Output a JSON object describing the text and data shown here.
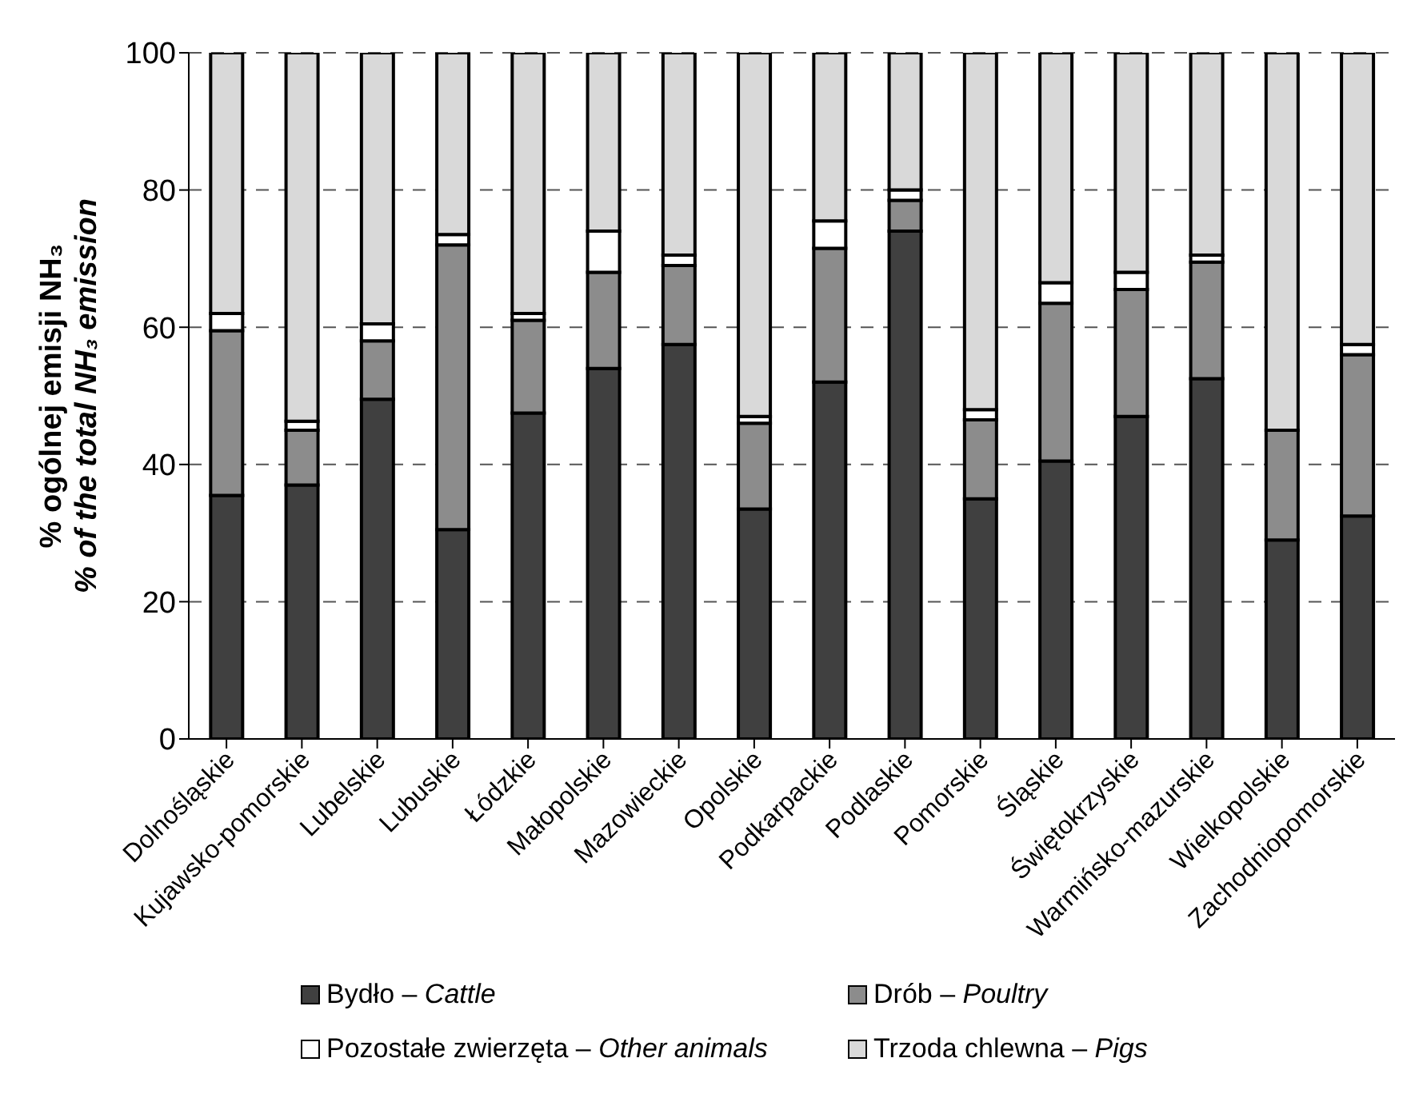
{
  "chart_data": {
    "type": "bar",
    "stacked": true,
    "ylabel": "% ogólnej emisji NH₃\n% of the total NH₃ emission",
    "categories": [
      "Dolnośląskie",
      "Kujawsko-pomorskie",
      "Lubelskie",
      "Lubuskie",
      "Łódzkie",
      "Małopolskie",
      "Mazowieckie",
      "Opolskie",
      "Podkarpackie",
      "Podlaskie",
      "Pomorskie",
      "Śląskie",
      "Świętokrzyskie",
      "Warmińsko-mazurskie",
      "Wielkopolskie",
      "Zachodniopomorskie"
    ],
    "series": [
      {
        "name": "Bydło – Cattle",
        "color": "#404040",
        "values": [
          35.5,
          37,
          49.5,
          30.5,
          47.5,
          54,
          57.5,
          33.5,
          52,
          74,
          35,
          40.5,
          47,
          52.5,
          29,
          32.5
        ]
      },
      {
        "name": "Drób – Poultry",
        "color": "#8c8c8c",
        "values": [
          24,
          8,
          8.5,
          41.5,
          13.5,
          14,
          11.5,
          12.5,
          19.5,
          4.5,
          11.5,
          23,
          18.5,
          17,
          16,
          23.5
        ]
      },
      {
        "name": "Pozostałe zwierzęta – Other animals",
        "color": "#ffffff",
        "values": [
          2.5,
          1.3,
          2.5,
          1.5,
          1,
          6,
          1.5,
          1,
          4,
          1.5,
          1.5,
          3,
          2.5,
          1,
          null,
          1.5
        ]
      },
      {
        "name": "Trzoda chlewna – Pigs",
        "color": "#d9d9d9",
        "values": [
          38,
          53.7,
          39.5,
          26.5,
          38,
          26,
          29.5,
          53,
          24.5,
          20,
          52,
          33.5,
          32,
          29.5,
          55,
          42.5
        ]
      }
    ],
    "ylim": [
      0,
      100
    ],
    "yticks": [
      0,
      20,
      40,
      60,
      80,
      100
    ],
    "grid": "y",
    "legend": "bottom"
  }
}
